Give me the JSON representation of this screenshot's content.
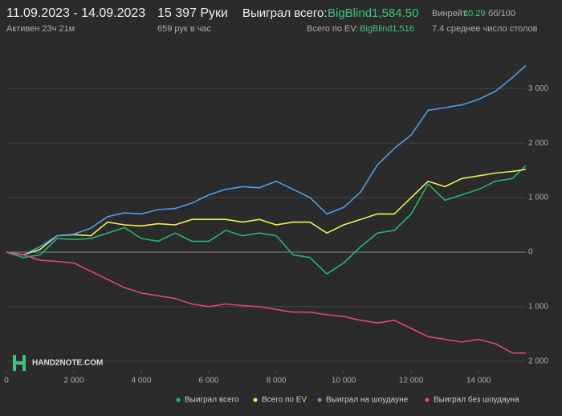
{
  "header": {
    "date_range": "11.09.2023 - 14.09.2023",
    "active": "Активен 23ч 21м",
    "hands": "15 397 Руки",
    "hands_per_hour": "659 рук в час",
    "won_label": "Выиграл всего:",
    "won_value": "BigBlind1,584.50",
    "ev_label": "Всего по EV:",
    "ev_value": "BigBlind1,516",
    "winrate_label": "Винрейт:",
    "winrate_value": "10.29",
    "winrate_unit": "бб/100",
    "tables": "7.4 среднее число столов"
  },
  "logo": "HAND2NOTE.COM",
  "chart_data": {
    "type": "line",
    "grid": true,
    "x": [
      0,
      500,
      1000,
      1500,
      2000,
      2500,
      3000,
      3500,
      4000,
      4500,
      5000,
      5500,
      6000,
      6500,
      7000,
      7500,
      8000,
      8500,
      9000,
      9500,
      10000,
      10500,
      11000,
      11500,
      12000,
      12500,
      13000,
      13500,
      14000,
      14500,
      15000,
      15397
    ],
    "xlim": [
      0,
      15400
    ],
    "ylim": [
      -2180,
      3960
    ],
    "xticks": [
      0,
      {
        "value": 2000,
        "label": "2 000"
      },
      {
        "value": 4000,
        "label": "4 000"
      },
      {
        "value": 6000,
        "label": "6 000"
      },
      {
        "value": 8000,
        "label": "8 000"
      },
      {
        "value": 10000,
        "label": "10 000"
      },
      {
        "value": 12000,
        "label": "12 000"
      },
      {
        "value": 14000,
        "label": "14 000"
      }
    ],
    "yticks": [
      {
        "value": 3000,
        "label": "3 000"
      },
      {
        "value": 2000,
        "label": "2 000"
      },
      {
        "value": 1000,
        "label": "1 000"
      },
      0,
      {
        "value": -1000,
        "label": "1 000"
      },
      {
        "value": -2000,
        "label": "2 000"
      }
    ],
    "series": [
      {
        "name": "Выиграл всего",
        "color": "#22b573",
        "values": [
          0,
          -100,
          -50,
          250,
          230,
          250,
          350,
          450,
          250,
          200,
          350,
          200,
          200,
          400,
          300,
          350,
          300,
          -50,
          -100,
          -400,
          -200,
          100,
          350,
          400,
          700,
          1250,
          950,
          1050,
          1150,
          1300,
          1350,
          1584.5
        ]
      },
      {
        "name": "Всего по EV",
        "color": "#eeee55",
        "values": [
          0,
          -50,
          50,
          300,
          320,
          300,
          550,
          500,
          480,
          520,
          500,
          600,
          600,
          600,
          550,
          600,
          500,
          550,
          550,
          350,
          500,
          600,
          700,
          700,
          1000,
          1300,
          1200,
          1350,
          1400,
          1450,
          1480,
          1516
        ]
      },
      {
        "name": "Выиграл на шоудауне",
        "color": "#4a9eea",
        "values": [
          0,
          -50,
          100,
          300,
          330,
          440,
          650,
          720,
          700,
          780,
          800,
          900,
          1050,
          1150,
          1200,
          1180,
          1300,
          1150,
          1000,
          700,
          820,
          1100,
          1600,
          1900,
          2150,
          2600,
          2650,
          2700,
          2800,
          2950,
          3200,
          3420
        ]
      },
      {
        "name": "Выиграл без шоудауна",
        "color": "#e0457b",
        "values": [
          0,
          -50,
          -150,
          -170,
          -200,
          -350,
          -500,
          -650,
          -750,
          -800,
          -850,
          -950,
          -1000,
          -950,
          -980,
          -1000,
          -1050,
          -1100,
          -1100,
          -1150,
          -1180,
          -1250,
          -1300,
          -1250,
          -1400,
          -1550,
          -1600,
          -1650,
          -1600,
          -1680,
          -1850,
          -1850
        ]
      }
    ]
  }
}
